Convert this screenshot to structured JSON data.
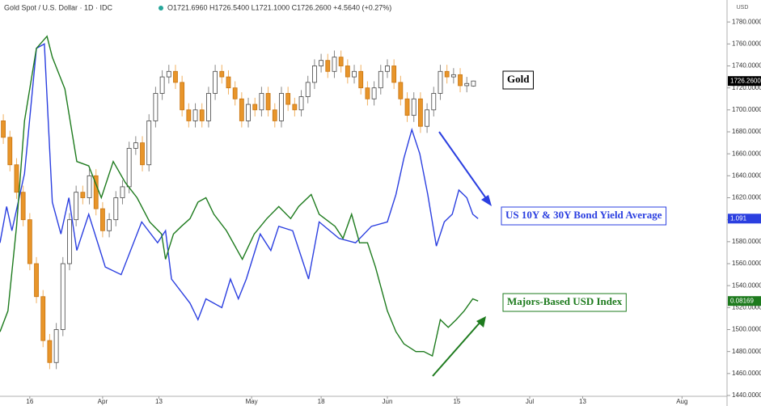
{
  "chart_data": {
    "type": "candlestick",
    "title": "Gold Spot / U.S. Dollar · 1D · IDC",
    "subtitle": "O1721.6960 H1726.5400 L1721.1000 C1726.2600 +4.5640 (+0.27%)",
    "y_axis_label": "USD",
    "xlim": [
      -0.5,
      109.3
    ],
    "xticks": [
      {
        "value": 4,
        "label": "16"
      },
      {
        "value": 15,
        "label": "Apr"
      },
      {
        "value": 23.5,
        "label": "13"
      },
      {
        "value": 37.5,
        "label": "May"
      },
      {
        "value": 48,
        "label": "18"
      },
      {
        "value": 58,
        "label": "Jun"
      },
      {
        "value": 68.5,
        "label": "15"
      },
      {
        "value": 79.5,
        "label": "Jul"
      },
      {
        "value": 87.5,
        "label": "13"
      },
      {
        "value": 102.5,
        "label": "Aug"
      }
    ],
    "ylim": [
      1440,
      1800
    ],
    "yticks": [
      {
        "value": 1440,
        "label": "1440.0000"
      },
      {
        "value": 1460,
        "label": "1460.0000"
      },
      {
        "value": 1480,
        "label": "1480.0000"
      },
      {
        "value": 1500,
        "label": "1500.0000"
      },
      {
        "value": 1520,
        "label": "1520.0000"
      },
      {
        "value": 1540,
        "label": "1540.0000"
      },
      {
        "value": 1560,
        "label": "1560.0000"
      },
      {
        "value": 1580,
        "label": "1580.0000"
      },
      {
        "value": 1600,
        "label": "1600.0000"
      },
      {
        "value": 1620,
        "label": "1620.0000"
      },
      {
        "value": 1640,
        "label": "1640.0000"
      },
      {
        "value": 1660,
        "label": "1660.0000"
      },
      {
        "value": 1680,
        "label": "1680.0000"
      },
      {
        "value": 1700,
        "label": "1700.0000"
      },
      {
        "value": 1720,
        "label": "1720.0000"
      },
      {
        "value": 1740,
        "label": "1740.0000"
      },
      {
        "value": 1760,
        "label": "1760.0000"
      },
      {
        "value": 1780,
        "label": "1780.0000"
      }
    ],
    "candles": {
      "name": "Gold",
      "tag_label": "1726.2600",
      "up_color": "#ffffff",
      "down_color": "#e8952a",
      "open": [
        1690,
        1675,
        1650,
        1625,
        1600,
        1560,
        1530,
        1490,
        1470,
        1500,
        1560,
        1600,
        1625,
        1620,
        1640,
        1610,
        1590,
        1600,
        1620,
        1630,
        1665,
        1670,
        1650,
        1690,
        1715,
        1730,
        1735,
        1725,
        1700,
        1690,
        1700,
        1690,
        1715,
        1735,
        1730,
        1720,
        1710,
        1690,
        1705,
        1700,
        1715,
        1700,
        1690,
        1715,
        1705,
        1700,
        1712,
        1725,
        1740,
        1745,
        1735,
        1748,
        1740,
        1730,
        1735,
        1720,
        1710,
        1720,
        1735,
        1740,
        1725,
        1710,
        1695,
        1710,
        1685,
        1700,
        1715,
        1735,
        1730,
        1732,
        1722,
        1721.696
      ],
      "high": [
        1696,
        1681,
        1656,
        1631,
        1606,
        1566,
        1536,
        1496,
        1506,
        1566,
        1606,
        1631,
        1631,
        1646,
        1646,
        1616,
        1606,
        1626,
        1636,
        1671,
        1676,
        1676,
        1696,
        1721,
        1736,
        1741,
        1741,
        1731,
        1706,
        1706,
        1706,
        1721,
        1741,
        1741,
        1736,
        1726,
        1716,
        1711,
        1711,
        1721,
        1721,
        1706,
        1721,
        1721,
        1711,
        1718,
        1731,
        1746,
        1751,
        1751,
        1754,
        1754,
        1746,
        1741,
        1741,
        1726,
        1726,
        1741,
        1746,
        1746,
        1731,
        1716,
        1716,
        1716,
        1706,
        1721,
        1741,
        1741,
        1738,
        1738,
        1730,
        1726.54
      ],
      "low": [
        1669,
        1644,
        1619,
        1594,
        1554,
        1524,
        1484,
        1464,
        1464,
        1494,
        1554,
        1594,
        1614,
        1614,
        1604,
        1584,
        1584,
        1594,
        1614,
        1624,
        1659,
        1644,
        1644,
        1684,
        1709,
        1724,
        1719,
        1694,
        1684,
        1684,
        1684,
        1684,
        1709,
        1724,
        1714,
        1704,
        1684,
        1684,
        1694,
        1694,
        1694,
        1684,
        1684,
        1699,
        1694,
        1694,
        1706,
        1719,
        1734,
        1729,
        1729,
        1734,
        1724,
        1724,
        1714,
        1704,
        1704,
        1714,
        1729,
        1719,
        1704,
        1689,
        1689,
        1679,
        1679,
        1694,
        1709,
        1724,
        1724,
        1716,
        1716,
        1721.1
      ],
      "close": [
        1675,
        1650,
        1625,
        1600,
        1560,
        1530,
        1490,
        1470,
        1500,
        1560,
        1600,
        1625,
        1620,
        1640,
        1610,
        1590,
        1600,
        1620,
        1630,
        1665,
        1670,
        1650,
        1690,
        1715,
        1730,
        1735,
        1725,
        1700,
        1690,
        1700,
        1690,
        1715,
        1735,
        1730,
        1720,
        1710,
        1690,
        1705,
        1700,
        1715,
        1700,
        1690,
        1715,
        1705,
        1700,
        1712,
        1725,
        1740,
        1745,
        1735,
        1748,
        1740,
        1730,
        1735,
        1720,
        1710,
        1720,
        1735,
        1740,
        1725,
        1710,
        1695,
        1710,
        1685,
        1700,
        1715,
        1735,
        1730,
        1732,
        1722,
        1724,
        1726.26
      ]
    },
    "series": [
      {
        "name": "US 10Y & 30Y Bond Yield Average",
        "type": "line",
        "color": "#2b3fe0",
        "tag_label": "1.091",
        "x": [
          -0.5,
          0.5,
          1.3,
          3.2,
          5.0,
          6.2,
          7.4,
          8.7,
          9.9,
          11.1,
          12.9,
          15.4,
          17.8,
          20.9,
          23.3,
          24.5,
          25.4,
          28.2,
          29.4,
          30.6,
          33.0,
          34.3,
          35.5,
          36.7,
          38.8,
          40.4,
          41.6,
          43.7,
          46.1,
          47.7,
          50.7,
          53.2,
          55.6,
          58.0,
          59.3,
          60.5,
          61.7,
          62.9,
          64.1,
          65.4,
          66.6,
          67.8,
          68.8,
          70.0,
          70.9,
          71.7
        ],
        "values": [
          1579,
          1612,
          1590,
          1642,
          1756,
          1760,
          1616,
          1587,
          1620,
          1572,
          1605,
          1557,
          1550,
          1598,
          1579,
          1590,
          1546,
          1524,
          1509,
          1528,
          1520,
          1546,
          1528,
          1546,
          1587,
          1572,
          1594,
          1590,
          1546,
          1598,
          1583,
          1579,
          1594,
          1598,
          1623,
          1656,
          1682,
          1660,
          1623,
          1576,
          1598,
          1605,
          1627,
          1620,
          1605,
          1601
        ]
      },
      {
        "name": "Majors-Based USD Index",
        "type": "line",
        "color": "#1e7b1e",
        "tag_label": "0.08169",
        "x": [
          -0.5,
          0.7,
          2.0,
          3.2,
          5.0,
          6.6,
          7.4,
          9.3,
          11.1,
          12.9,
          14.8,
          16.6,
          18.4,
          20.2,
          22.1,
          23.9,
          24.5,
          25.7,
          26.9,
          28.2,
          29.4,
          30.6,
          31.8,
          33.7,
          36.1,
          37.9,
          39.8,
          41.6,
          43.4,
          44.6,
          46.5,
          47.7,
          50.1,
          51.3,
          52.6,
          53.8,
          55.0,
          56.2,
          58.0,
          59.3,
          60.5,
          62.3,
          63.5,
          64.8,
          66.0,
          67.2,
          68.4,
          69.6,
          70.9,
          71.7
        ],
        "values": [
          1498,
          1517,
          1594,
          1690,
          1756,
          1767,
          1748,
          1719,
          1653,
          1649,
          1620,
          1653,
          1634,
          1620,
          1598,
          1587,
          1564,
          1587,
          1594,
          1601,
          1616,
          1620,
          1605,
          1590,
          1564,
          1587,
          1601,
          1612,
          1601,
          1612,
          1623,
          1605,
          1594,
          1583,
          1605,
          1579,
          1579,
          1557,
          1517,
          1498,
          1487,
          1480,
          1480,
          1476,
          1509,
          1502,
          1509,
          1517,
          1528,
          1526
        ]
      }
    ]
  }
}
